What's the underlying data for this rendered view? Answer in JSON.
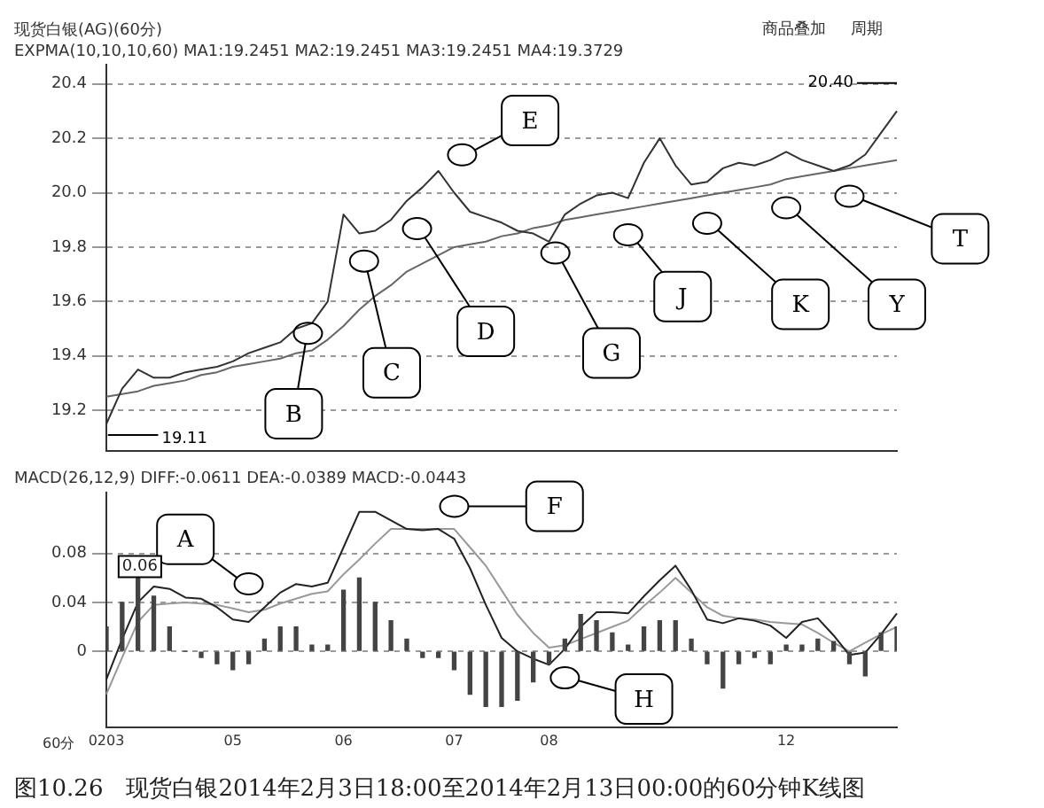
{
  "chart_data": [
    {
      "type": "line",
      "title": "现货白银(AG)(60分)",
      "subtitle": "EXPMA(10,10,10,60) MA1:19.2451 MA2:19.2451 MA3:19.2451 MA4:19.3729",
      "categories": [
        "0203",
        null,
        null,
        null,
        null,
        null,
        null,
        null,
        "05",
        null,
        null,
        null,
        null,
        null,
        null,
        "06",
        null,
        null,
        null,
        null,
        null,
        null,
        "07",
        null,
        null,
        null,
        null,
        null,
        "08",
        null,
        null,
        null,
        null,
        null,
        null,
        null,
        null,
        null,
        null,
        null,
        null,
        null,
        null,
        "12",
        null,
        null,
        null,
        null,
        null,
        null,
        null
      ],
      "ylim": [
        19.05,
        20.47
      ],
      "yticks": [
        {
          "value": 19.2,
          "label": "19.2"
        },
        {
          "value": 19.4,
          "label": "19.4"
        },
        {
          "value": 19.6,
          "label": "19.6"
        },
        {
          "value": 19.8,
          "label": "19.8"
        },
        {
          "value": 20,
          "label": "20.0"
        },
        {
          "value": 20.2,
          "label": "20.2"
        },
        {
          "value": 20.4,
          "label": "20.4"
        }
      ],
      "tick_labels": "y",
      "grid": "y",
      "legend": false,
      "series": [
        {
          "color": "#333333",
          "values": [
            19.15,
            19.28,
            19.35,
            19.32,
            19.32,
            19.34,
            19.35,
            19.36,
            19.38,
            19.41,
            19.43,
            19.45,
            19.5,
            19.52,
            19.6,
            19.92,
            19.85,
            19.86,
            19.9,
            19.97,
            20.02,
            20.08,
            20,
            19.93,
            19.91,
            19.89,
            19.86,
            19.85,
            19.82,
            19.92,
            19.96,
            19.99,
            20,
            19.98,
            20.11,
            20.2,
            20.1,
            20.03,
            20.04,
            20.09,
            20.11,
            20.1,
            20.12,
            20.15,
            20.12,
            20.1,
            20.08,
            20.1,
            20.14,
            20.22,
            20.3
          ]
        },
        {
          "color": "#666666",
          "values": [
            19.25,
            19.26,
            19.27,
            19.29,
            19.3,
            19.31,
            19.33,
            19.34,
            19.36,
            19.37,
            19.38,
            19.39,
            19.41,
            19.42,
            19.46,
            19.51,
            19.57,
            19.62,
            19.66,
            19.71,
            19.74,
            19.77,
            19.8,
            19.81,
            19.82,
            19.84,
            19.85,
            19.87,
            19.88,
            19.9,
            19.91,
            19.92,
            19.93,
            19.94,
            19.95,
            19.96,
            19.97,
            19.98,
            19.99,
            20,
            20.01,
            20.02,
            20.03,
            20.05,
            20.06,
            20.07,
            20.08,
            20.09,
            20.1,
            20.11,
            20.12
          ]
        }
      ],
      "annotations": [
        "商品叠加",
        "周期",
        "B",
        "C",
        "D",
        "E",
        "G",
        "J",
        "K",
        "Y",
        "T",
        "19.11",
        "20.40"
      ]
    },
    {
      "type": "line",
      "subtitle": "MACD(26,12,9) DIFF:-0.0611 DEA:-0.0389 MACD:-0.0443",
      "categories": [
        "0203",
        null,
        null,
        null,
        null,
        null,
        null,
        null,
        "05",
        null,
        null,
        null,
        null,
        null,
        null,
        "06",
        null,
        null,
        null,
        null,
        null,
        null,
        "07",
        null,
        null,
        null,
        null,
        null,
        "08",
        null,
        null,
        null,
        null,
        null,
        null,
        null,
        null,
        null,
        null,
        null,
        null,
        null,
        null,
        "12",
        null,
        null,
        null,
        null,
        null,
        null,
        null
      ],
      "ylim": [
        -0.062,
        0.13
      ],
      "yticks": [
        0,
        0.04,
        0.08
      ],
      "grid": "y",
      "legend": false,
      "series": [
        {
          "type": "bar",
          "color": "#444444",
          "values": [
            0.02,
            0.04,
            0.06,
            0.045,
            0.02,
            0,
            -0.005,
            -0.01,
            -0.015,
            -0.01,
            0.01,
            0.02,
            0.02,
            0.005,
            0.005,
            0.05,
            0.06,
            0.04,
            0.025,
            0.01,
            -0.005,
            -0.005,
            -0.015,
            -0.035,
            -0.045,
            -0.045,
            -0.04,
            -0.025,
            -0.01,
            0.01,
            0.03,
            0.025,
            0.015,
            0.005,
            0.02,
            0.025,
            0.025,
            0.01,
            -0.01,
            -0.03,
            -0.01,
            -0.005,
            -0.01,
            0.005,
            0.005,
            0.01,
            0.008,
            -0.01,
            -0.02,
            0.015,
            0.02
          ]
        },
        {
          "color": "#222222",
          "values": [
            -0.023,
            0.01,
            0.04,
            0.053,
            0.051,
            0.044,
            0.043,
            0.036,
            0.026,
            0.024,
            0.036,
            0.048,
            0.055,
            0.053,
            0.056,
            0.085,
            0.114,
            0.114,
            0.107,
            0.1,
            0.099,
            0.1,
            0.092,
            0.068,
            0.038,
            0.011,
            0,
            -0.006,
            -0.011,
            0.002,
            0.02,
            0.032,
            0.032,
            0.031,
            0.045,
            0.058,
            0.07,
            0.05,
            0.026,
            0.023,
            0.027,
            0.025,
            0.021,
            0.011,
            0.024,
            0.027,
            0.013,
            -0.003,
            -0.001,
            0.014,
            0.031
          ]
        },
        {
          "color": "#999999",
          "values": [
            -0.035,
            -0.005,
            0.024,
            0.038,
            0.039,
            0.04,
            0.039,
            0.038,
            0.035,
            0.032,
            0.034,
            0.039,
            0.043,
            0.047,
            0.049,
            0.063,
            0.075,
            0.088,
            0.1,
            0.1,
            0.1,
            0.1,
            0.1,
            0.085,
            0.07,
            0.05,
            0.03,
            0.015,
            0.003,
            0.005,
            0.01,
            0.015,
            0.02,
            0.025,
            0.037,
            0.048,
            0.06,
            0.048,
            0.036,
            0.029,
            0.027,
            0.026,
            0.024,
            0.023,
            0.022,
            0.015,
            0.007,
            0,
            0.007,
            0.014,
            0.02
          ]
        }
      ],
      "annotations": [
        "60分",
        "图10.26　现货白银2014年2月3日18:00至2014年2月13日00:00的60分钟K线图",
        "A",
        "F",
        "H",
        "0.06"
      ]
    }
  ]
}
